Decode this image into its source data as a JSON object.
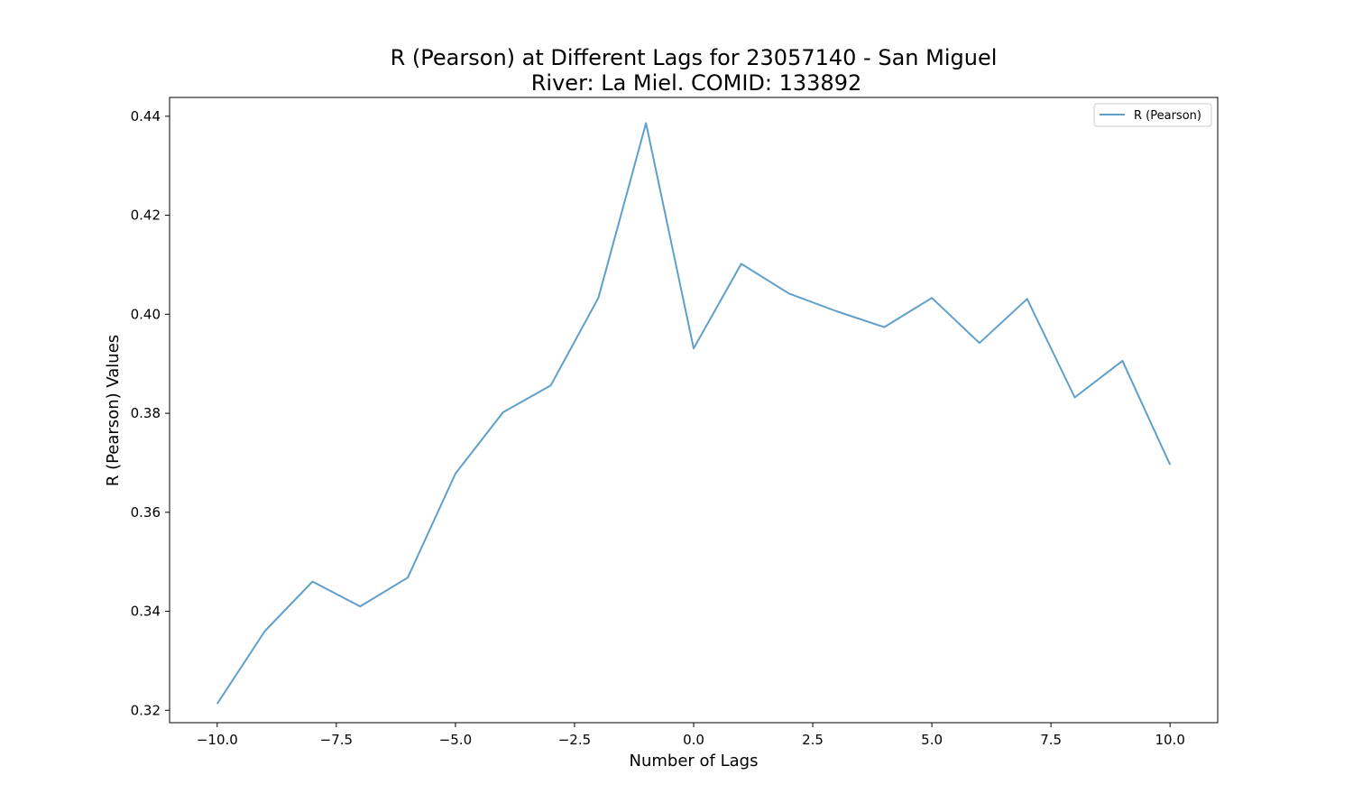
{
  "chart_data": {
    "type": "line",
    "title_lines": [
      "R (Pearson) at Different Lags for 23057140 - San Miguel",
      "River: La Miel. COMID: 133892"
    ],
    "xlabel": "Number of Lags",
    "ylabel": "R (Pearson) Values",
    "xlim": [
      -11,
      11
    ],
    "ylim": [
      0.3175,
      0.4438
    ],
    "x_ticks": [
      -10.0,
      -7.5,
      -5.0,
      -2.5,
      0.0,
      2.5,
      5.0,
      7.5,
      10.0
    ],
    "x_tick_labels": [
      "−10.0",
      "−7.5",
      "−5.0",
      "−2.5",
      "0.0",
      "2.5",
      "5.0",
      "7.5",
      "10.0"
    ],
    "y_ticks": [
      0.32,
      0.34,
      0.36,
      0.38,
      0.4,
      0.42,
      0.44
    ],
    "y_tick_labels": [
      "0.32",
      "0.34",
      "0.36",
      "0.38",
      "0.40",
      "0.42",
      "0.44"
    ],
    "grid": false,
    "legend_position": "top-right",
    "series": [
      {
        "name": "R (Pearson)",
        "color": "#5f9fcc",
        "x": [
          -10,
          -9,
          -8,
          -7,
          -6,
          -5,
          -4,
          -3,
          -2,
          -1,
          0,
          1,
          2,
          3,
          4,
          5,
          6,
          7,
          8,
          9,
          10
        ],
        "values": [
          0.3213,
          0.336,
          0.346,
          0.341,
          0.3468,
          0.3678,
          0.3802,
          0.3856,
          0.4033,
          0.4386,
          0.3931,
          0.4102,
          0.4042,
          0.4006,
          0.3974,
          0.4033,
          0.3942,
          0.4031,
          0.3832,
          0.3906,
          0.3696
        ]
      }
    ]
  }
}
